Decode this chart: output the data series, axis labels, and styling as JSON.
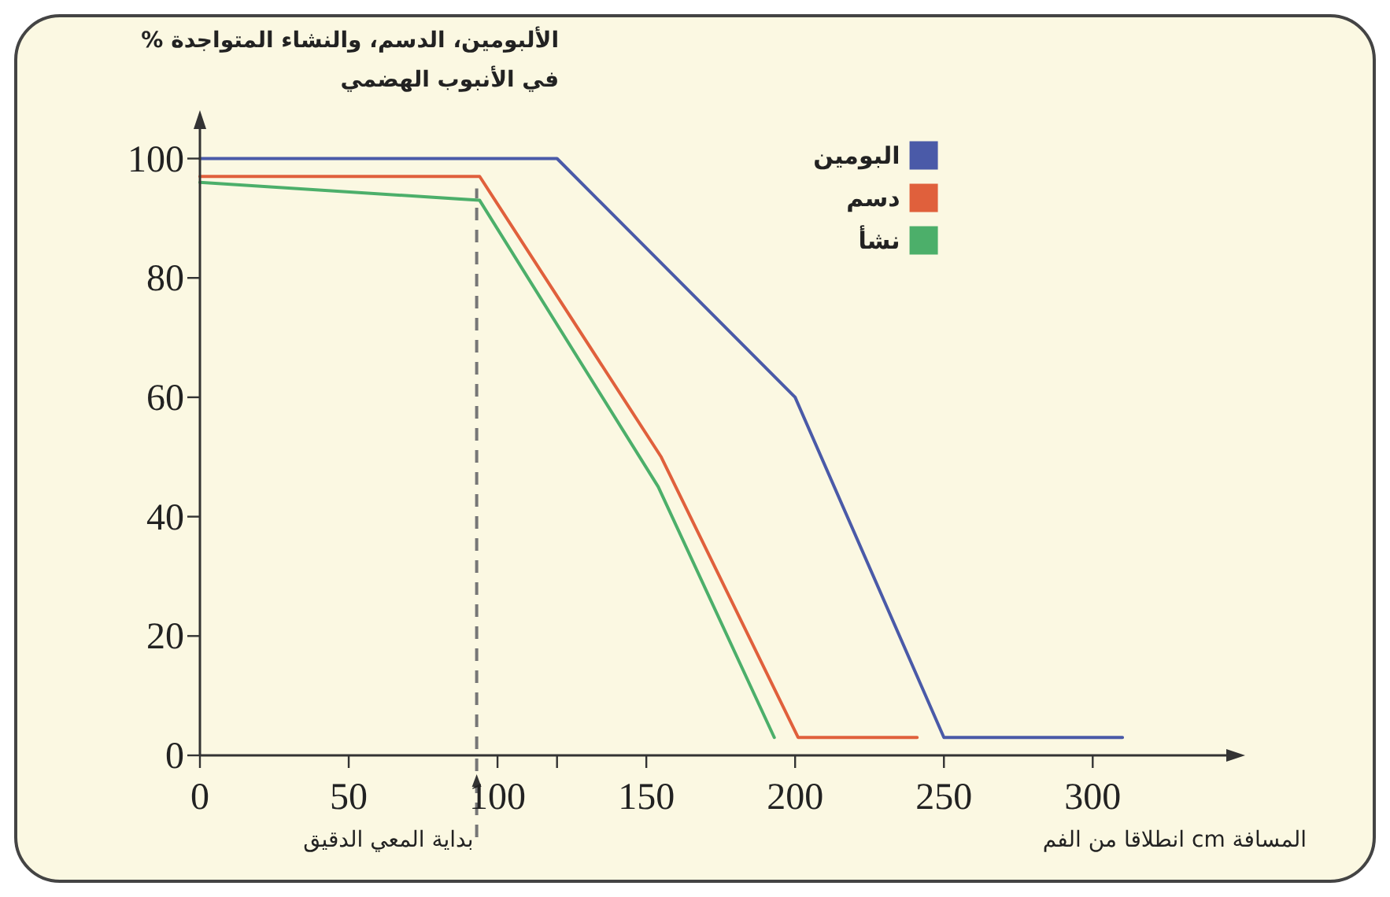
{
  "chart_data": {
    "type": "line",
    "ylabel": "% الألبومين، الدسم، والنشاء المتواجدة في الأنبوب الهضمي",
    "xlabel": "المسافة cm انطلاقا من الفم",
    "series": [
      {
        "name": "البومين",
        "color": "#4a5aa8",
        "x": [
          0,
          120,
          200,
          250,
          310
        ],
        "values": [
          100,
          100,
          60,
          3,
          3
        ]
      },
      {
        "name": "دسم",
        "color": "#e0603c",
        "x": [
          0,
          94,
          155,
          201,
          241
        ],
        "values": [
          97,
          97,
          50,
          3,
          3
        ]
      },
      {
        "name": "نشأ",
        "color": "#4caf6a",
        "x": [
          0,
          94,
          154,
          193
        ],
        "values": [
          96,
          93,
          45,
          3
        ]
      }
    ],
    "xlim": [
      0,
      347
    ],
    "ylim": [
      0,
      106
    ],
    "xticks": [
      0,
      50,
      100,
      {
        "value": 120,
        "label": null
      },
      150,
      200,
      250,
      300
    ],
    "yticks": [
      0,
      20,
      40,
      60,
      80,
      100
    ],
    "ref_lines": [
      {
        "axis": "x",
        "value": 93,
        "label": "بداية المعي الدقيق",
        "color": "#777777",
        "line_style": "dashed"
      }
    ],
    "legend": "top right",
    "marker": "none",
    "line_style": "solid",
    "grid": false
  }
}
